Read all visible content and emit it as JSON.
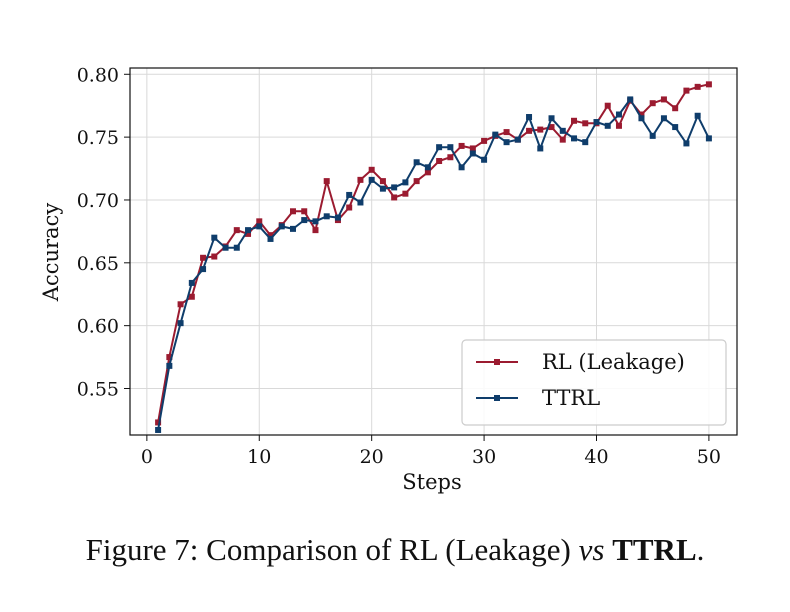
{
  "chart_data": {
    "type": "line",
    "xlabel": "Steps",
    "ylabel": "Accuracy",
    "xlim": [
      -1.5,
      52.5
    ],
    "ylim": [
      0.513,
      0.805
    ],
    "xticks": [
      0,
      10,
      20,
      30,
      40,
      50
    ],
    "yticks": [
      0.55,
      0.6,
      0.65,
      0.7,
      0.75,
      0.8
    ],
    "ytick_labels": [
      "0.55",
      "0.60",
      "0.65",
      "0.70",
      "0.75",
      "0.80"
    ],
    "grid": true,
    "legend_position": "lower-right",
    "x": [
      1,
      2,
      3,
      4,
      5,
      6,
      7,
      8,
      9,
      10,
      11,
      12,
      13,
      14,
      15,
      16,
      17,
      18,
      19,
      20,
      21,
      22,
      23,
      24,
      25,
      26,
      27,
      28,
      29,
      30,
      31,
      32,
      33,
      34,
      35,
      36,
      37,
      38,
      39,
      40,
      41,
      42,
      43,
      44,
      45,
      46,
      47,
      48,
      49,
      50
    ],
    "series": [
      {
        "name": "RL (Leakage)",
        "color": "#9b1b30",
        "values": [
          0.523,
          0.575,
          0.617,
          0.623,
          0.654,
          0.655,
          0.663,
          0.676,
          0.673,
          0.683,
          0.672,
          0.68,
          0.691,
          0.691,
          0.676,
          0.715,
          0.684,
          0.694,
          0.716,
          0.724,
          0.715,
          0.702,
          0.705,
          0.715,
          0.722,
          0.731,
          0.734,
          0.743,
          0.741,
          0.747,
          0.751,
          0.754,
          0.748,
          0.755,
          0.756,
          0.758,
          0.748,
          0.763,
          0.761,
          0.761,
          0.775,
          0.759,
          0.779,
          0.768,
          0.777,
          0.78,
          0.773,
          0.787,
          0.79,
          0.792
        ]
      },
      {
        "name": "TTRL",
        "color": "#0f3d6b",
        "values": [
          0.517,
          0.568,
          0.602,
          0.634,
          0.645,
          0.67,
          0.662,
          0.662,
          0.676,
          0.679,
          0.669,
          0.679,
          0.677,
          0.684,
          0.683,
          0.687,
          0.686,
          0.704,
          0.698,
          0.716,
          0.709,
          0.71,
          0.714,
          0.73,
          0.726,
          0.742,
          0.742,
          0.726,
          0.737,
          0.732,
          0.752,
          0.746,
          0.748,
          0.766,
          0.741,
          0.765,
          0.755,
          0.749,
          0.746,
          0.762,
          0.759,
          0.768,
          0.78,
          0.765,
          0.751,
          0.765,
          0.758,
          0.745,
          0.767,
          0.749
        ]
      }
    ]
  },
  "caption": {
    "prefix": "Figure 7: Comparison of RL (Leakage) ",
    "vs": "vs",
    "space": " ",
    "method": "TTRL",
    "suffix": "."
  }
}
